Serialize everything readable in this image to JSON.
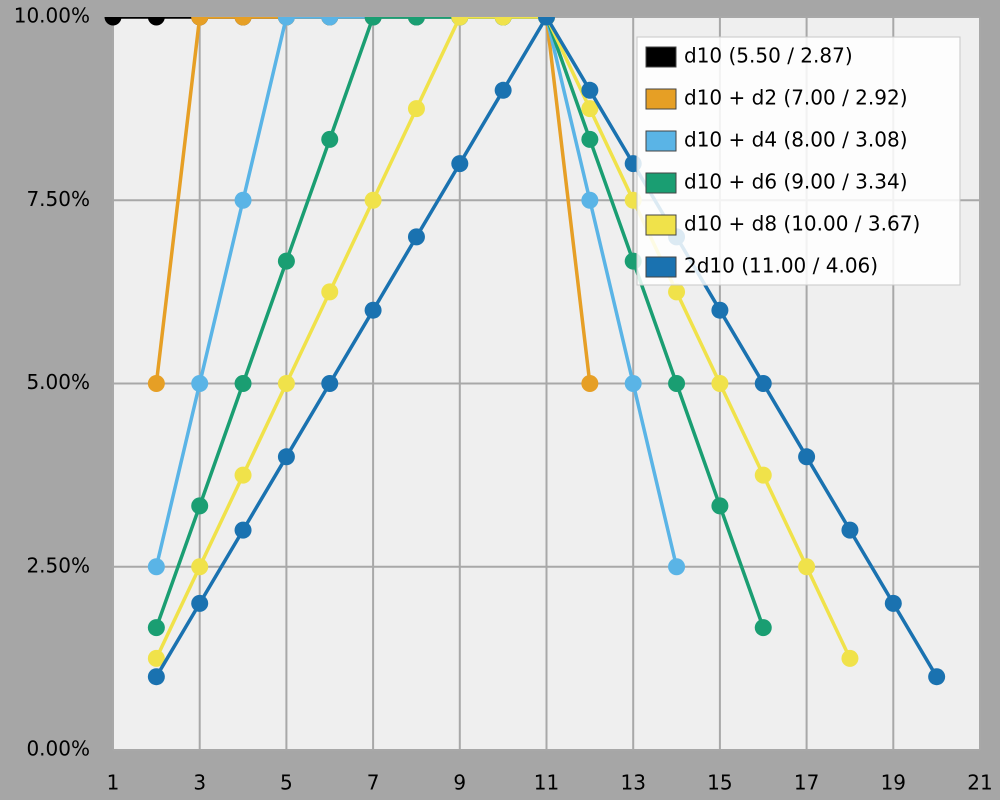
{
  "chart_data": {
    "type": "line",
    "xlim": [
      1,
      21
    ],
    "xticks": [
      1,
      3,
      5,
      7,
      9,
      11,
      13,
      15,
      17,
      19,
      21
    ],
    "ylim": [
      0,
      10
    ],
    "yticks": [
      {
        "value": 0,
        "label": "0.00%"
      },
      {
        "value": 2.5,
        "label": "2.50%"
      },
      {
        "value": 5,
        "label": "5.00%"
      },
      {
        "value": 7.5,
        "label": "7.50%"
      },
      {
        "value": 10,
        "label": "10.00%"
      }
    ],
    "grid": true,
    "legend": "top-right",
    "series": [
      {
        "name": "d10 (5.50 / 2.87)",
        "color": "#000000",
        "x": [
          1,
          2,
          3,
          4,
          5,
          6,
          7,
          8,
          9,
          10
        ],
        "values": [
          10,
          10,
          10,
          10,
          10,
          10,
          10,
          10,
          10,
          10
        ]
      },
      {
        "name": "d10 + d2 (7.00 / 2.92)",
        "color": "#e69f25",
        "x": [
          2,
          3,
          4,
          5,
          6,
          7,
          8,
          9,
          10,
          11,
          12
        ],
        "values": [
          5,
          10,
          10,
          10,
          10,
          10,
          10,
          10,
          10,
          10,
          5
        ]
      },
      {
        "name": "d10 + d4 (8.00 / 3.08)",
        "color": "#5ab4e6",
        "x": [
          2,
          3,
          4,
          5,
          6,
          7,
          8,
          9,
          10,
          11,
          12,
          13,
          14
        ],
        "values": [
          2.5,
          5,
          7.5,
          10,
          10,
          10,
          10,
          10,
          10,
          10,
          7.5,
          5,
          2.5
        ]
      },
      {
        "name": "d10 + d6 (9.00 / 3.34)",
        "color": "#1a9e72",
        "x": [
          2,
          3,
          4,
          5,
          6,
          7,
          8,
          9,
          10,
          11,
          12,
          13,
          14,
          15,
          16
        ],
        "values": [
          1.67,
          3.33,
          5,
          6.67,
          8.33,
          10,
          10,
          10,
          10,
          10,
          8.33,
          6.67,
          5,
          3.33,
          1.67
        ]
      },
      {
        "name": "d10 + d8 (10.00 / 3.67)",
        "color": "#f0e24a",
        "x": [
          2,
          3,
          4,
          5,
          6,
          7,
          8,
          9,
          10,
          11,
          12,
          13,
          14,
          15,
          16,
          17,
          18
        ],
        "values": [
          1.25,
          2.5,
          3.75,
          5,
          6.25,
          7.5,
          8.75,
          10,
          10,
          10,
          8.75,
          7.5,
          6.25,
          5,
          3.75,
          2.5,
          1.25
        ]
      },
      {
        "name": "2d10 (11.00 / 4.06)",
        "color": "#1a72b0",
        "x": [
          2,
          3,
          4,
          5,
          6,
          7,
          8,
          9,
          10,
          11,
          12,
          13,
          14,
          15,
          16,
          17,
          18,
          19,
          20
        ],
        "values": [
          1,
          2,
          3,
          4,
          5,
          6,
          7,
          8,
          9,
          10,
          9,
          8,
          7,
          6,
          5,
          4,
          3,
          2,
          1
        ]
      }
    ]
  }
}
